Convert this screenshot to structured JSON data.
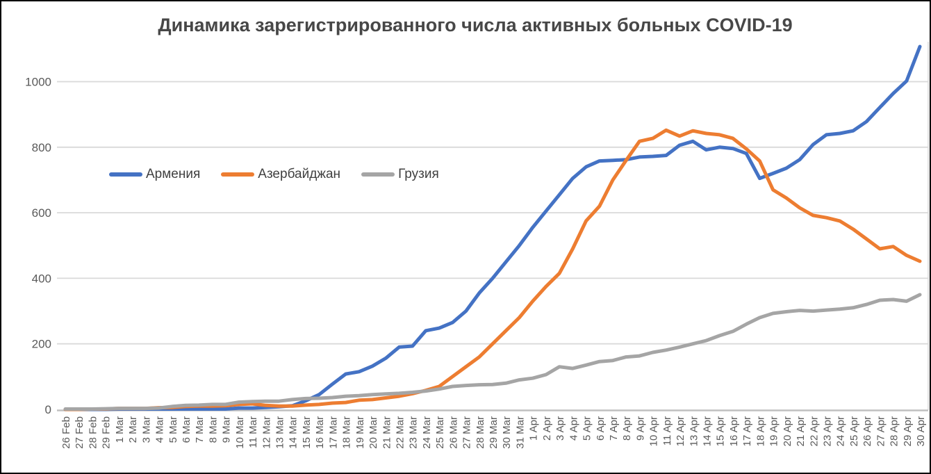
{
  "chart": {
    "title": "Динамика зарегистрированного числа активных больных COVID-19"
  },
  "chart_data": {
    "type": "line",
    "title": "Динамика зарегистрированного числа активных больных COVID-19",
    "xlabel": "",
    "ylabel": "",
    "ylim": [
      0,
      1120
    ],
    "yticks": [
      0,
      200,
      400,
      600,
      800,
      1000
    ],
    "grid": "horizontal",
    "legend_position": "inside-upper-left",
    "x": [
      "26 Feb",
      "27 Feb",
      "28 Feb",
      "29 Feb",
      "1 Mar",
      "2 Mar",
      "3 Mar",
      "4 Mar",
      "5 Mar",
      "6 Mar",
      "7 Mar",
      "8 Mar",
      "9 Mar",
      "10 Mar",
      "11 Mar",
      "12 Mar",
      "13 Mar",
      "14 Mar",
      "15 Mar",
      "16 Mar",
      "17 Mar",
      "18 Mar",
      "19 Mar",
      "20 Mar",
      "21 Mar",
      "22 Mar",
      "23 Mar",
      "24 Mar",
      "25 Mar",
      "26 Mar",
      "27 Mar",
      "28 Mar",
      "29 Mar",
      "30 Mar",
      "31 Mar",
      "1 Apr",
      "2 Apr",
      "3 Apr",
      "4 Apr",
      "5 Apr",
      "6 Apr",
      "7 Apr",
      "8 Apr",
      "9 Apr",
      "10 Apr",
      "11 Apr",
      "12 Apr",
      "13 Apr",
      "14 Apr",
      "15 Apr",
      "16 Apr",
      "17 Apr",
      "18 Apr",
      "19 Apr",
      "20 Apr",
      "21 Apr",
      "22 Apr",
      "23 Apr",
      "24 Apr",
      "25 Apr",
      "26 Apr",
      "27 Apr",
      "28 Apr",
      "29 Apr",
      "30 Apr"
    ],
    "series": [
      {
        "key": "armenia",
        "name": "Армения",
        "color": "#4472C4",
        "values": [
          0,
          0,
          0,
          0,
          1,
          1,
          1,
          1,
          1,
          1,
          1,
          1,
          1,
          4,
          4,
          6,
          8,
          11,
          26,
          45,
          77,
          108,
          115,
          132,
          156,
          190,
          193,
          240,
          248,
          265,
          300,
          355,
          400,
          450,
          500,
          555,
          605,
          655,
          705,
          740,
          758,
          760,
          762,
          770,
          772,
          775,
          806,
          818,
          792,
          800,
          796,
          781,
          705,
          720,
          736,
          762,
          808,
          838,
          842,
          850,
          878,
          921,
          964,
          1002,
          1107
        ]
      },
      {
        "key": "azerbaijan",
        "name": "Азербайджан",
        "color": "#ED7D31",
        "values": [
          0,
          0,
          1,
          1,
          3,
          3,
          3,
          5,
          6,
          9,
          10,
          10,
          11,
          15,
          17,
          12,
          10,
          10,
          13,
          15,
          19,
          21,
          28,
          30,
          35,
          40,
          48,
          58,
          70,
          100,
          130,
          160,
          200,
          240,
          280,
          330,
          375,
          415,
          490,
          575,
          620,
          700,
          760,
          818,
          827,
          852,
          834,
          850,
          842,
          838,
          827,
          795,
          758,
          670,
          645,
          615,
          592,
          585,
          575,
          550,
          520,
          490,
          497,
          470,
          452
        ]
      },
      {
        "key": "georgia",
        "name": "Грузия",
        "color": "#A5A5A5",
        "values": [
          1,
          1,
          1,
          2,
          3,
          3,
          3,
          4,
          9,
          12,
          13,
          15,
          15,
          22,
          24,
          25,
          25,
          30,
          33,
          34,
          36,
          40,
          42,
          45,
          47,
          49,
          52,
          56,
          62,
          70,
          73,
          75,
          76,
          80,
          90,
          95,
          106,
          130,
          125,
          135,
          146,
          149,
          160,
          163,
          174,
          181,
          190,
          200,
          210,
          225,
          238,
          260,
          280,
          293,
          298,
          302,
          300,
          303,
          306,
          310,
          320,
          333,
          335,
          330,
          350
        ]
      }
    ]
  }
}
